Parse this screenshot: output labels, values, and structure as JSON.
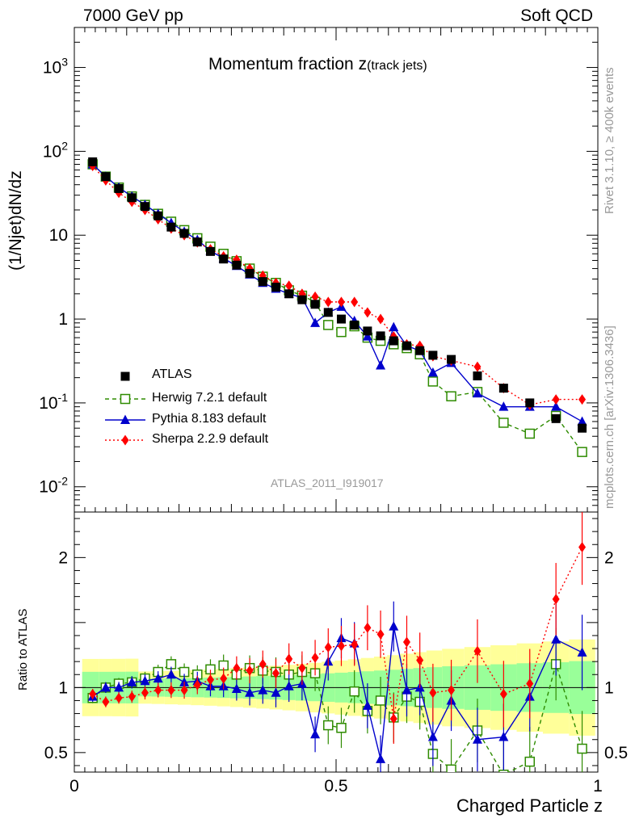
{
  "header": {
    "left": "7000 GeV pp",
    "right": "Soft QCD"
  },
  "side": {
    "rivet": "Rivet 3.1.10, ≥ 400k events",
    "mcplots": "mcplots.cern.ch [arXiv:1306.3436]"
  },
  "chart_data": [
    {
      "type": "scatter",
      "panel": "main",
      "title_main": "Momentum fraction z",
      "title_sub": "(track jets)",
      "xlabel": "Charged Particle z",
      "ylabel": "(1/Njet)dN/dz",
      "yscale": "log",
      "xlim": [
        0,
        1
      ],
      "ylim": [
        0.005,
        3000
      ],
      "analysis_id": "ATLAS_2011_I919017",
      "x_ticks": [
        "0",
        "0.5",
        "1"
      ],
      "y_ticks": [
        "10^-2",
        "10^-1",
        "1",
        "10",
        "10^2",
        "10^3"
      ],
      "x": [
        0.035,
        0.06,
        0.085,
        0.11,
        0.135,
        0.16,
        0.185,
        0.21,
        0.235,
        0.26,
        0.285,
        0.31,
        0.335,
        0.36,
        0.385,
        0.41,
        0.435,
        0.46,
        0.485,
        0.51,
        0.535,
        0.56,
        0.585,
        0.61,
        0.635,
        0.66,
        0.685,
        0.72,
        0.77,
        0.82,
        0.87,
        0.92,
        0.97
      ],
      "series": [
        {
          "name": "ATLAS",
          "marker": "square",
          "color": "#000000",
          "values": [
            75,
            50,
            36,
            28,
            22,
            17,
            12.5,
            10.5,
            8.3,
            6.4,
            5.2,
            4.4,
            3.5,
            2.8,
            2.4,
            2.0,
            1.7,
            1.5,
            1.2,
            1.0,
            0.85,
            0.72,
            0.63,
            0.55,
            0.48,
            0.42,
            0.37,
            0.33,
            0.21,
            0.15,
            0.1,
            0.065,
            0.05
          ]
        },
        {
          "name": "Herwig 7.2.1 default",
          "marker": "open-square",
          "color": "#2e8b00",
          "values": [
            70,
            50,
            37,
            29,
            23,
            18,
            14.5,
            11.5,
            9.2,
            7.3,
            6.0,
            4.9,
            4.0,
            3.2,
            2.7,
            2.2,
            1.9,
            1.6,
            0.85,
            0.7,
            0.82,
            0.6,
            0.55,
            0.5,
            0.45,
            0.38,
            0.18,
            0.12,
            0.135,
            0.058,
            0.043,
            0.07,
            0.026
          ]
        },
        {
          "name": "Pythia 8.183 default",
          "marker": "triangle",
          "color": "#0000cc",
          "values": [
            70,
            50,
            37,
            29,
            23,
            18,
            14,
            11,
            8.8,
            6.5,
            5.3,
            4.3,
            3.4,
            2.7,
            2.3,
            2.0,
            1.8,
            0.9,
            1.2,
            1.4,
            0.95,
            0.62,
            0.28,
            0.8,
            0.48,
            0.42,
            0.23,
            0.3,
            0.13,
            0.09,
            0.09,
            0.09,
            0.06
          ]
        },
        {
          "name": "Sherpa 2.2.9 default",
          "marker": "diamond",
          "color": "#ff0000",
          "values": [
            67,
            45,
            32,
            25,
            20,
            15.5,
            12,
            10,
            8.2,
            6.8,
            5.6,
            5.1,
            4.0,
            3.3,
            2.7,
            2.5,
            2.0,
            1.85,
            1.6,
            1.6,
            1.6,
            1.2,
            1.0,
            0.62,
            0.5,
            0.48,
            0.36,
            0.32,
            0.27,
            0.15,
            0.095,
            0.11,
            0.11
          ]
        }
      ]
    },
    {
      "type": "scatter",
      "panel": "ratio",
      "ylabel": "Ratio to ATLAS",
      "xlabel": "Charged Particle z",
      "xlim": [
        0,
        1
      ],
      "ylim": [
        0.35,
        2.35
      ],
      "y_ticks": [
        "0.5",
        "1",
        "2"
      ],
      "x": [
        0.035,
        0.06,
        0.085,
        0.11,
        0.135,
        0.16,
        0.185,
        0.21,
        0.235,
        0.26,
        0.285,
        0.31,
        0.335,
        0.36,
        0.385,
        0.41,
        0.435,
        0.46,
        0.485,
        0.51,
        0.535,
        0.56,
        0.585,
        0.61,
        0.635,
        0.66,
        0.685,
        0.72,
        0.77,
        0.82,
        0.87,
        0.92,
        0.97
      ],
      "series": [
        {
          "name": "Herwig 7.2.1 default",
          "color": "#2e8b00",
          "values": [
            0.92,
            1.0,
            1.03,
            1.04,
            1.07,
            1.12,
            1.18,
            1.12,
            1.1,
            1.14,
            1.17,
            1.1,
            1.15,
            1.13,
            1.12,
            1.1,
            1.12,
            1.11,
            0.71,
            0.69,
            0.97,
            0.82,
            0.9,
            0.77,
            0.93,
            0.89,
            0.49,
            0.37,
            0.67,
            0.33,
            0.43,
            1.18,
            0.53
          ]
        },
        {
          "name": "Pythia 8.183 default",
          "color": "#0000cc",
          "values": [
            0.93,
            1.0,
            1.0,
            1.04,
            1.05,
            1.07,
            1.1,
            1.04,
            1.05,
            1.01,
            1.01,
            0.99,
            0.96,
            0.98,
            0.96,
            1.01,
            1.03,
            0.64,
            1.2,
            1.38,
            1.34,
            0.86,
            0.45,
            1.47,
            0.98,
            1.0,
            0.62,
            0.9,
            0.6,
            0.62,
            0.93,
            1.37,
            1.27
          ]
        },
        {
          "name": "Sherpa 2.2.9 default",
          "color": "#ff0000",
          "values": [
            0.95,
            0.89,
            0.92,
            0.93,
            0.96,
            0.98,
            0.98,
            0.98,
            1.02,
            1.06,
            1.07,
            1.15,
            1.13,
            1.18,
            1.11,
            1.22,
            1.15,
            1.23,
            1.31,
            1.32,
            1.33,
            1.46,
            1.41,
            0.76,
            1.35,
            1.21,
            0.96,
            0.98,
            1.28,
            0.95,
            1.03,
            1.68,
            2.08
          ]
        }
      ]
    }
  ]
}
